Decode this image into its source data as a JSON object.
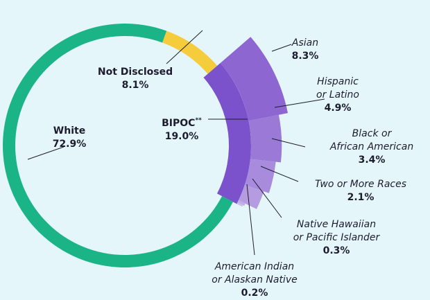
{
  "chart_data": {
    "type": "donut",
    "categories": [
      "Not Disclosed",
      "BIPOC",
      "White"
    ],
    "values": [
      8.1,
      19.0,
      72.9
    ],
    "value_labels": [
      "8.1%",
      "19.0%",
      "72.9%"
    ],
    "colors": [
      "#f5cd3c",
      "#7b52cc",
      "#1bb487"
    ],
    "marker": "**",
    "breakdown": {
      "category_lines": [
        [
          "Asian"
        ],
        [
          "Hispanic",
          "or Latino"
        ],
        [
          "Black or",
          "African American"
        ],
        [
          "Two or More Races"
        ],
        [
          "Native Hawaiian",
          "or Pacific Islander"
        ],
        [
          "American Indian",
          "or Alaskan Native"
        ]
      ],
      "values": [
        8.3,
        4.9,
        3.4,
        2.1,
        0.3,
        0.2
      ],
      "value_labels": [
        "8.3%",
        "4.9%",
        "3.4%",
        "2.1%",
        "0.3%",
        "0.2%"
      ],
      "colors": [
        "#8d66d2",
        "#9a79d7",
        "#a88bdc",
        "#b59ce1",
        "#c2aee6",
        "#cdbdeb"
      ]
    }
  }
}
